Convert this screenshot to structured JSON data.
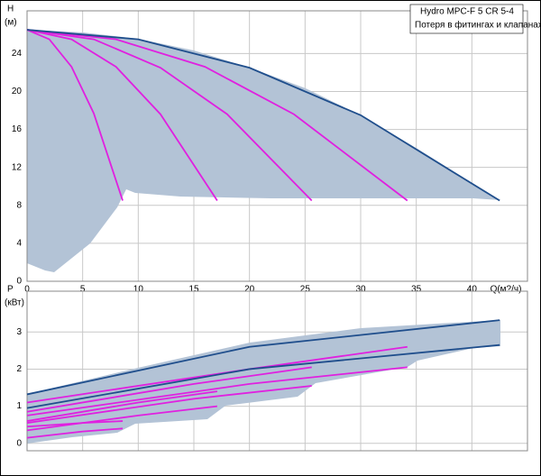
{
  "chart_data": [
    {
      "type": "line",
      "annotations": [
        "Hydro  MPC-F 5 CR 5-4",
        "Потеря в фитингах и клапанах"
      ],
      "y_label": [
        "H",
        "(м)"
      ],
      "x_label": "Q(м?/ч)",
      "xlim": [
        0,
        45
      ],
      "xticks": [
        0,
        5,
        10,
        15,
        20,
        25,
        30,
        35,
        40
      ],
      "ylim": [
        0,
        28.5
      ],
      "yticks": [
        0,
        4,
        8,
        12,
        16,
        20,
        24
      ],
      "grid": true,
      "series": [
        {
          "color": "#e020e0",
          "x": [
            0,
            2,
            4,
            6,
            8.6
          ],
          "values": [
            26.5,
            25.5,
            22.6,
            17.7,
            8.5
          ]
        },
        {
          "color": "#e020e0",
          "x": [
            0,
            4,
            8,
            12,
            17.1
          ],
          "values": [
            26.5,
            25.5,
            22.6,
            17.6,
            8.5
          ]
        },
        {
          "color": "#e020e0",
          "x": [
            0,
            6,
            12,
            18,
            25.6
          ],
          "values": [
            26.5,
            25.5,
            22.5,
            17.6,
            8.5
          ]
        },
        {
          "color": "#e020e0",
          "x": [
            0,
            8,
            16,
            24,
            34.2
          ],
          "values": [
            26.5,
            25.5,
            22.6,
            17.6,
            8.5
          ]
        },
        {
          "color": "#1f4e8c",
          "x": [
            0,
            10,
            20,
            30,
            42.5
          ],
          "values": [
            26.5,
            25.5,
            22.5,
            17.5,
            8.5
          ]
        }
      ]
    },
    {
      "type": "line",
      "y_label": [
        "P",
        "(кВт)"
      ],
      "xlim": [
        0,
        45
      ],
      "ylim": [
        -0.2,
        4.1
      ],
      "yticks": [
        0,
        1,
        2,
        3
      ],
      "grid": true,
      "series": [
        {
          "color": "#e020e0",
          "x": [
            0,
            5,
            8.6
          ],
          "values": [
            0.15,
            0.32,
            0.4
          ]
        },
        {
          "color": "#e020e0",
          "x": [
            0,
            5,
            8.6
          ],
          "values": [
            0.45,
            0.55,
            0.6
          ]
        },
        {
          "color": "#e020e0",
          "x": [
            0,
            10,
            17.1
          ],
          "values": [
            0.35,
            0.75,
            1.0
          ]
        },
        {
          "color": "#e020e0",
          "x": [
            0,
            10,
            17.1
          ],
          "values": [
            0.6,
            1.1,
            1.4
          ]
        },
        {
          "color": "#e020e0",
          "x": [
            0,
            15,
            25.6
          ],
          "values": [
            0.55,
            1.2,
            1.55
          ]
        },
        {
          "color": "#e020e0",
          "x": [
            0,
            15,
            25.6
          ],
          "values": [
            0.85,
            1.6,
            2.05
          ]
        },
        {
          "color": "#e020e0",
          "x": [
            0,
            20,
            34.2
          ],
          "values": [
            0.75,
            1.6,
            2.05
          ]
        },
        {
          "color": "#e020e0",
          "x": [
            0,
            20,
            34.2
          ],
          "values": [
            1.1,
            2.0,
            2.6
          ]
        },
        {
          "color": "#1f4e8c",
          "x": [
            0,
            20,
            42.5
          ],
          "values": [
            0.95,
            2.0,
            2.65
          ]
        },
        {
          "color": "#1f4e8c",
          "x": [
            0,
            20,
            42.5
          ],
          "values": [
            1.32,
            2.6,
            3.32
          ]
        }
      ]
    }
  ]
}
